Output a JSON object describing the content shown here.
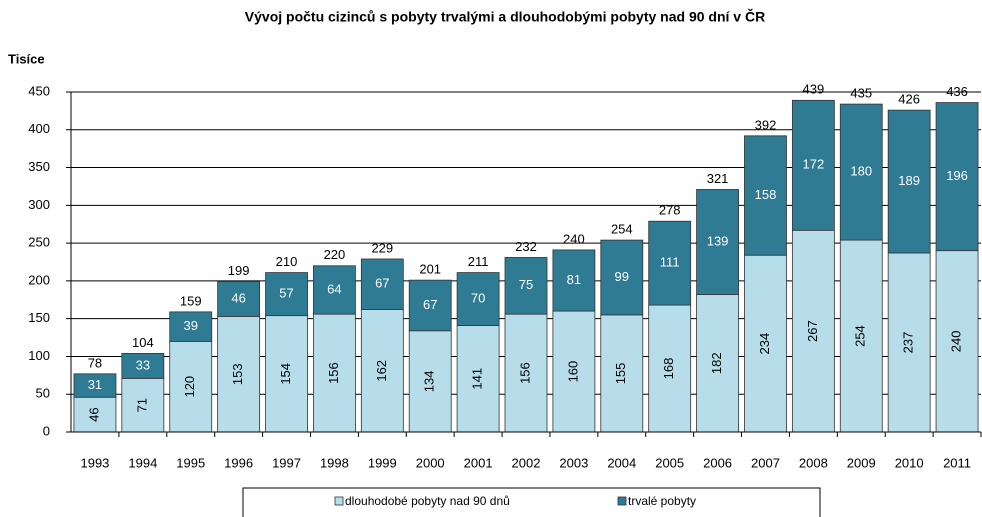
{
  "chart_data": {
    "type": "stacked-bar",
    "title": "Vývoj počtu cizinců s pobyty trvalými a dlouhodobými pobyty nad 90 dní v ČR",
    "y_label": "Tisíce",
    "categories": [
      "1993",
      "1994",
      "1995",
      "1996",
      "1997",
      "1998",
      "1999",
      "2000",
      "2001",
      "2002",
      "2003",
      "2004",
      "2005",
      "2006",
      "2007",
      "2008",
      "2009",
      "2010",
      "2011"
    ],
    "series": [
      {
        "name": "dlouhodobé pobyty nad 90 dnů",
        "color": "#b7dcea",
        "values": [
          46,
          71,
          120,
          153,
          154,
          156,
          162,
          134,
          141,
          156,
          160,
          155,
          168,
          182,
          234,
          267,
          254,
          237,
          240
        ]
      },
      {
        "name": "trvalé pobyty",
        "color": "#2e7b93",
        "values": [
          31,
          33,
          39,
          46,
          57,
          64,
          67,
          67,
          70,
          75,
          81,
          99,
          111,
          139,
          158,
          172,
          180,
          189,
          196
        ]
      }
    ],
    "total_labels": [
      78,
      104,
      159,
      199,
      210,
      220,
      229,
      201,
      211,
      232,
      240,
      254,
      278,
      321,
      392,
      439,
      435,
      426,
      436
    ],
    "ylim": [
      0,
      450
    ],
    "yticks": [
      0,
      50,
      100,
      150,
      200,
      250,
      300,
      350,
      400,
      450
    ],
    "grid": true,
    "legend": "bottom"
  }
}
